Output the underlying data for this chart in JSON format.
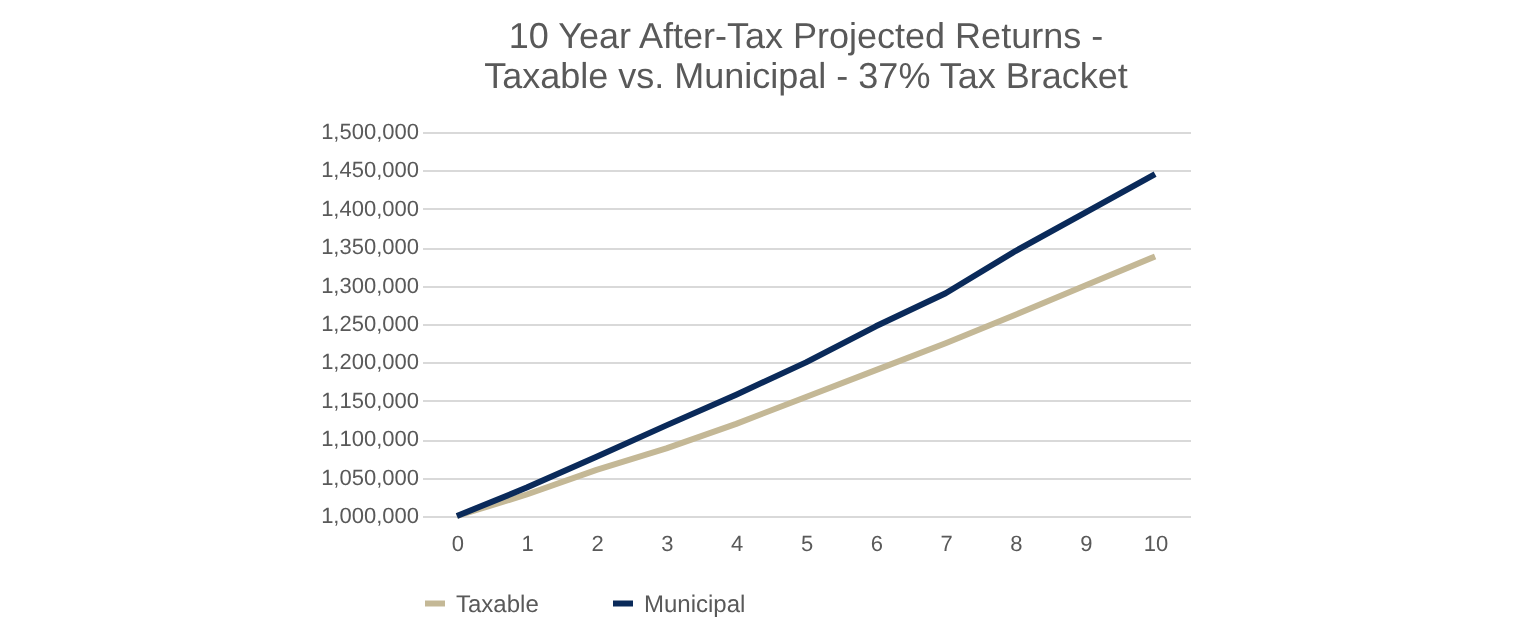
{
  "chart_data": {
    "type": "line",
    "title": [
      "10 Year After-Tax Projected Returns -",
      "Taxable vs. Municipal - 37% Tax Bracket"
    ],
    "categories": [
      "0",
      "1",
      "2",
      "3",
      "4",
      "5",
      "6",
      "7",
      "8",
      "9",
      "10"
    ],
    "series": [
      {
        "name": "Taxable",
        "color": "#c4b896",
        "values": [
          1000000,
          1028000,
          1060000,
          1088000,
          1120000,
          1155000,
          1190000,
          1225000,
          1262000,
          1300000,
          1338000
        ]
      },
      {
        "name": "Municipal",
        "color": "#0a2a5a",
        "values": [
          1000000,
          1037000,
          1077000,
          1118000,
          1158000,
          1200000,
          1247000,
          1290000,
          1345000,
          1395000,
          1445000
        ]
      }
    ],
    "ylim": [
      1000000,
      1500000
    ],
    "yticks": [
      {
        "value": 1000000,
        "label": "1,000,000"
      },
      {
        "value": 1050000,
        "label": "1,050,000"
      },
      {
        "value": 1100000,
        "label": "1,100,000"
      },
      {
        "value": 1150000,
        "label": "1,150,000"
      },
      {
        "value": 1200000,
        "label": "1,200,000"
      },
      {
        "value": 1250000,
        "label": "1,250,000"
      },
      {
        "value": 1300000,
        "label": "1,300,000"
      },
      {
        "value": 1350000,
        "label": "1,350,000"
      },
      {
        "value": 1400000,
        "label": "1,400,000"
      },
      {
        "value": 1450000,
        "label": "1,450,000"
      },
      {
        "value": 1500000,
        "label": "1,500,000"
      }
    ],
    "grid": "y",
    "legend": "bottom",
    "marker": "none",
    "line_style": "solid"
  }
}
